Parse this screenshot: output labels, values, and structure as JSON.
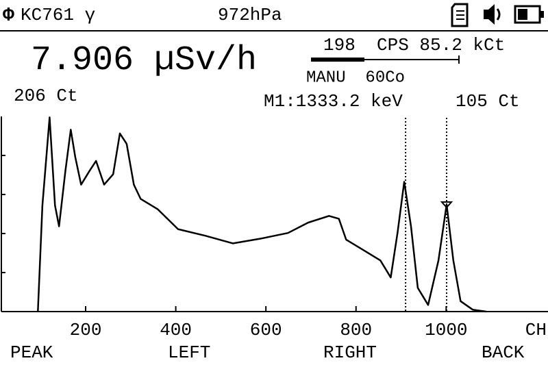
{
  "status": {
    "logo": "Φ",
    "device": "KC761 γ",
    "pressure": "972hPa"
  },
  "readout": {
    "dose_rate": "7.906 µSv/h",
    "count_rate": "198  CPS 85.2 kCt",
    "mode": "MANU  60Co",
    "marker": "M1:1333.2 keV",
    "marker_counts": "105 Ct",
    "scale_max": "206 Ct"
  },
  "spectrum": {
    "type": "line",
    "x_label": "CH",
    "x": [
      94,
      104,
      120,
      132,
      141,
      155,
      167,
      177,
      190,
      208,
      223,
      241,
      261,
      276,
      291,
      307,
      322,
      360,
      405,
      466,
      527,
      588,
      649,
      694,
      740,
      762,
      778,
      816,
      854,
      877,
      892,
      907,
      922,
      937,
      960,
      983,
      1001,
      1016,
      1032,
      1059,
      1089
    ],
    "values": [
      0,
      112,
      205,
      112,
      90,
      148,
      192,
      163,
      134,
      148,
      159,
      134,
      145,
      188,
      177,
      134,
      119,
      108,
      87,
      80,
      72,
      77,
      83,
      94,
      101,
      98,
      76,
      65,
      54,
      36,
      83,
      137,
      90,
      25,
      7,
      54,
      113,
      54,
      11,
      2,
      0
    ],
    "color": "#000000",
    "xlim": [
      13,
      1226
    ],
    "ylim": [
      0,
      206
    ],
    "xticks": [
      200,
      400,
      600,
      800,
      1000
    ],
    "markers": [
      910,
      1001
    ]
  },
  "softkeys": [
    "PEAK",
    "LEFT",
    "RIGHT",
    "BACK"
  ]
}
